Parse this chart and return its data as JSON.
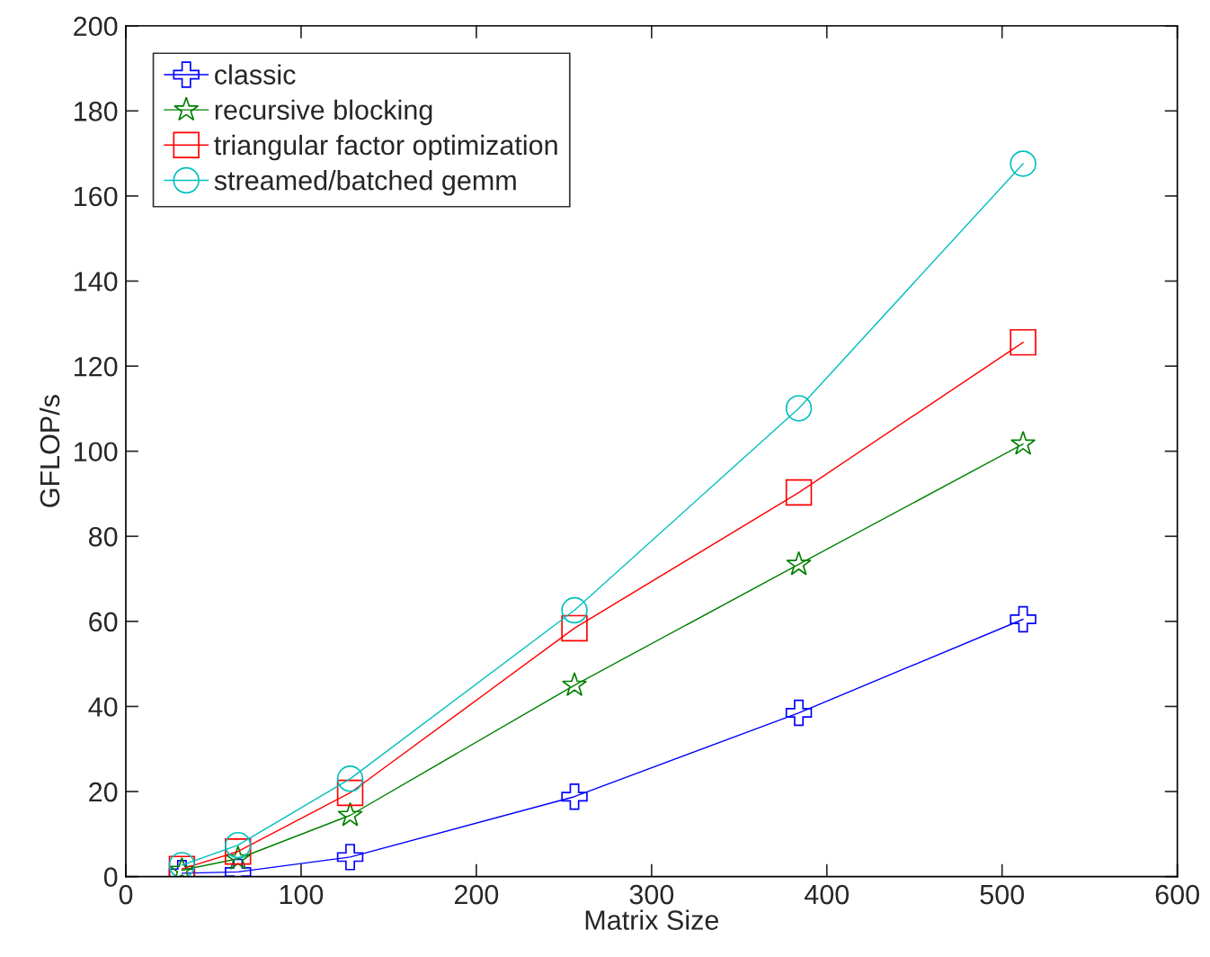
{
  "chart_data": {
    "type": "line",
    "xlabel": "Matrix Size",
    "ylabel": "GFLOP/s",
    "x": [
      32,
      64,
      128,
      256,
      384,
      512
    ],
    "series": [
      {
        "name": "classic",
        "color": "#0000ff",
        "marker": "cross",
        "values": [
          0.8,
          1.1,
          4.6,
          18.8,
          38.5,
          60.5
        ]
      },
      {
        "name": "recursive blocking",
        "color": "#008000",
        "marker": "star",
        "values": [
          1.5,
          4.2,
          14.4,
          45,
          73.4,
          101.7
        ]
      },
      {
        "name": "triangular factor optimization",
        "color": "#ff0000",
        "marker": "square",
        "values": [
          1.8,
          5.9,
          19.7,
          58.4,
          90.3,
          125.6
        ]
      },
      {
        "name": "streamed/batched gemm",
        "color": "#00bfbf",
        "marker": "circle",
        "values": [
          2.7,
          7.4,
          23,
          62.6,
          110.1,
          167.6
        ]
      }
    ],
    "xlim": [
      0,
      600
    ],
    "xticks": [
      0,
      100,
      200,
      300,
      400,
      500,
      600
    ],
    "ylim": [
      0,
      200
    ],
    "yticks": [
      0,
      20,
      40,
      60,
      80,
      100,
      120,
      140,
      160,
      180,
      200
    ],
    "grid": false,
    "legend": "top left",
    "line_style": "solid"
  }
}
